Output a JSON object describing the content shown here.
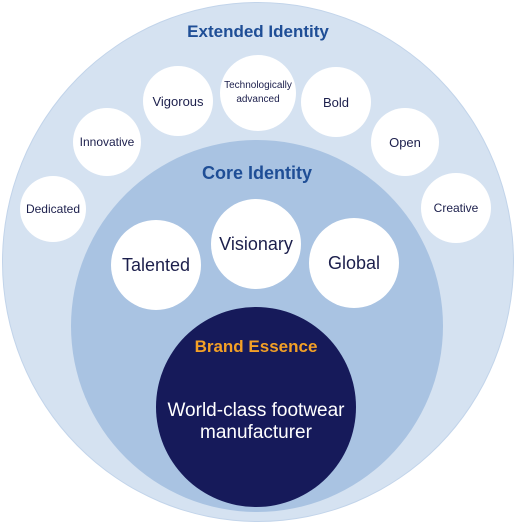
{
  "extended_identity": {
    "title": "Extended Identity",
    "items": [
      "Dedicated",
      "Innovative",
      "Vigorous",
      "Technologically advanced",
      "Bold",
      "Open",
      "Creative"
    ]
  },
  "core_identity": {
    "title": "Core Identity",
    "items": [
      "Talented",
      "Visionary",
      "Global"
    ]
  },
  "brand_essence": {
    "title": "Brand Essence",
    "text": "World-class footwear manufacturer"
  },
  "colors": {
    "outer_ring": "#d5e2f1",
    "core_ring": "#a9c3e2",
    "essence_circle": "#161a5a",
    "title_blue": "#1f4e96",
    "essence_orange": "#f3a026"
  }
}
